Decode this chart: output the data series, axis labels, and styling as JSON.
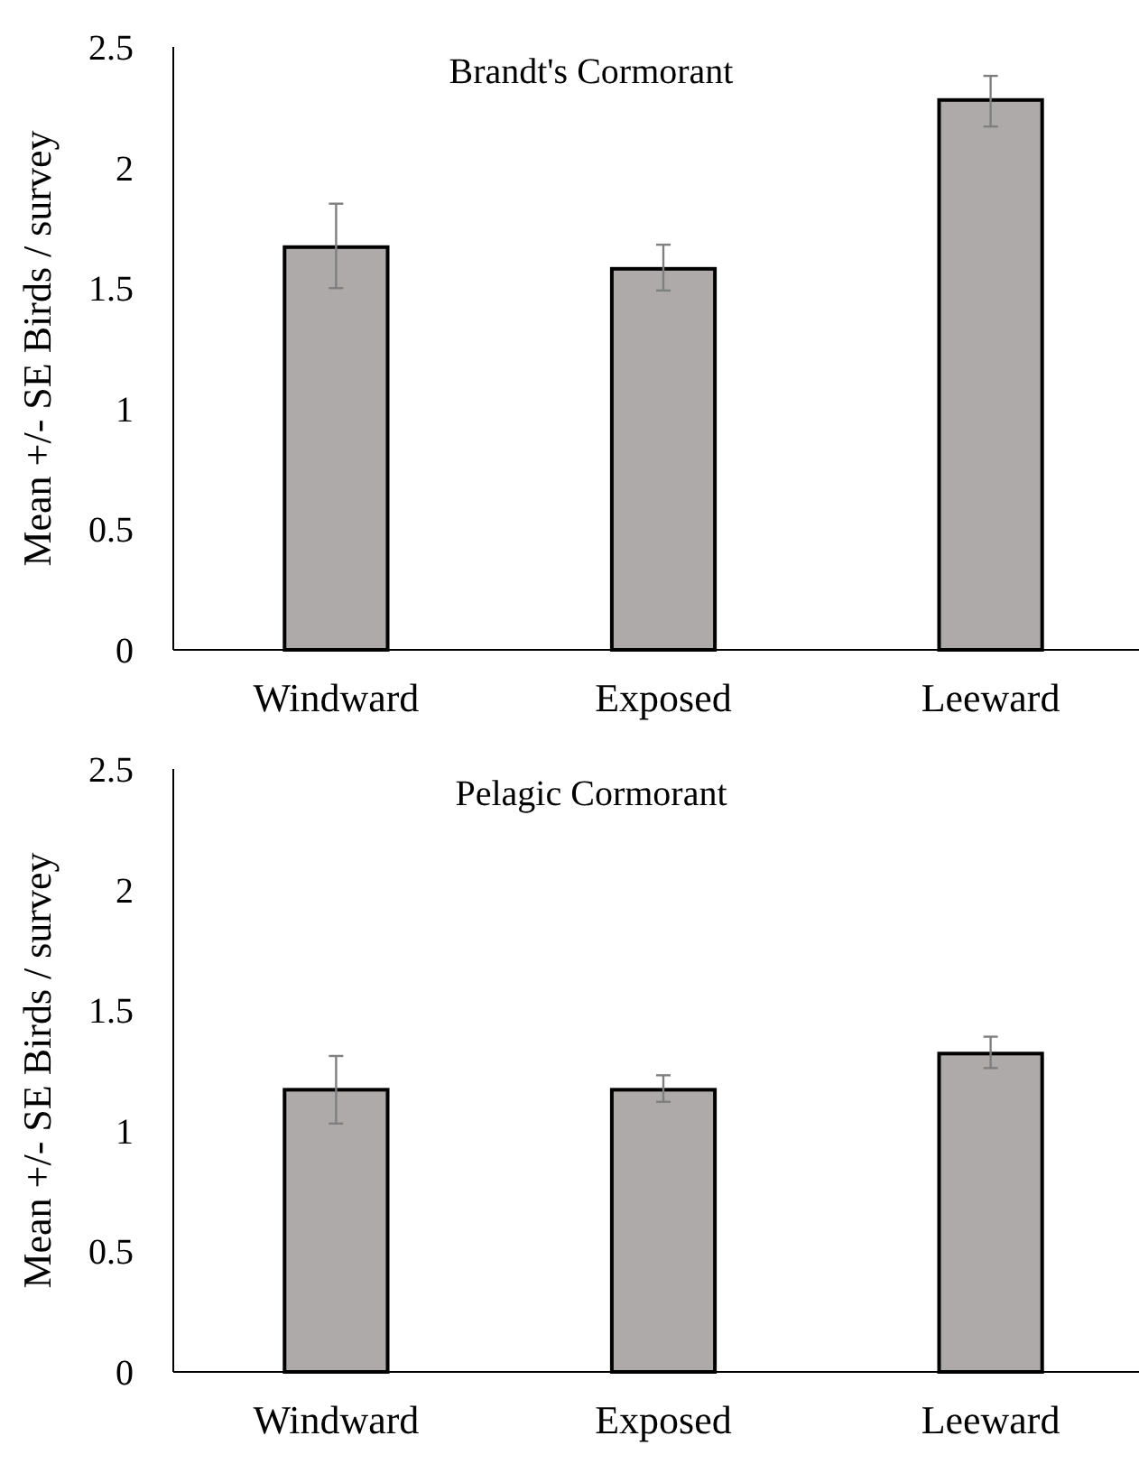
{
  "chart_data": [
    {
      "type": "bar",
      "title": "Brandt's  Cormorant",
      "ylabel": "Mean +/- SE Birds / survey",
      "categories": [
        "Windward",
        "Exposed",
        "Leeward"
      ],
      "values": [
        1.67,
        1.58,
        2.28
      ],
      "errors": [
        [
          1.5,
          1.85
        ],
        [
          1.49,
          1.68
        ],
        [
          2.17,
          2.38
        ]
      ],
      "color": "#aeaaaa",
      "ylim": [
        0,
        2.5
      ],
      "yticks": [
        0,
        0.5,
        1,
        1.5,
        2,
        2.5
      ]
    },
    {
      "type": "bar",
      "title": "Pelagic  Cormorant",
      "ylabel": "Mean +/- SE Birds / survey",
      "categories": [
        "Windward",
        "Exposed",
        "Leeward"
      ],
      "values": [
        1.17,
        1.17,
        1.32
      ],
      "errors": [
        [
          1.03,
          1.31
        ],
        [
          1.12,
          1.23
        ],
        [
          1.26,
          1.39
        ]
      ],
      "color": "#aeaaaa",
      "ylim": [
        0,
        2.5
      ],
      "yticks": [
        0,
        0.5,
        1,
        1.5,
        2,
        2.5
      ]
    }
  ]
}
